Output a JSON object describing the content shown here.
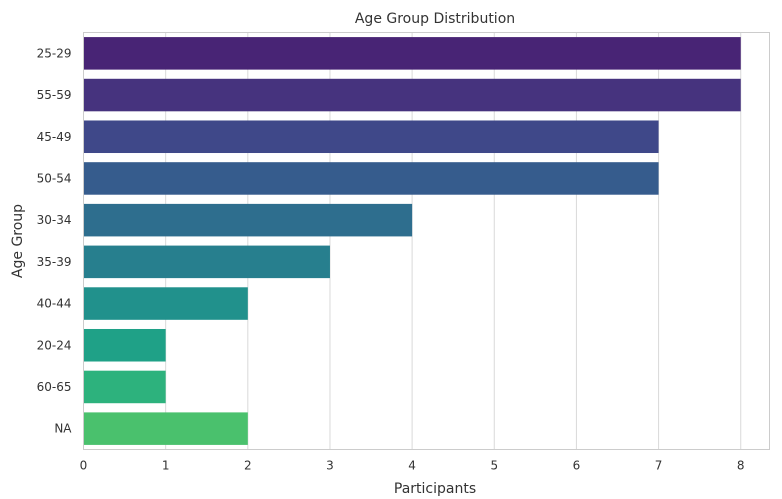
{
  "chart_data": {
    "type": "bar",
    "orientation": "horizontal",
    "title": "Age Group Distribution",
    "xlabel": "Participants",
    "ylabel": "Age Group",
    "categories": [
      "25-29",
      "55-59",
      "45-49",
      "50-54",
      "30-34",
      "35-39",
      "40-44",
      "20-24",
      "60-65",
      "NA"
    ],
    "values": [
      8,
      8,
      7,
      7,
      4,
      3,
      2,
      1,
      1,
      2
    ],
    "colors": [
      "#482475",
      "#46337e",
      "#3f4889",
      "#365c8d",
      "#2e6e8e",
      "#277f8e",
      "#21918c",
      "#1fa187",
      "#2db27d",
      "#4ac16d"
    ],
    "xlim": [
      0,
      8.35
    ],
    "xticks": [
      0,
      1,
      2,
      3,
      4,
      5,
      6,
      7,
      8
    ],
    "grid": "x"
  }
}
